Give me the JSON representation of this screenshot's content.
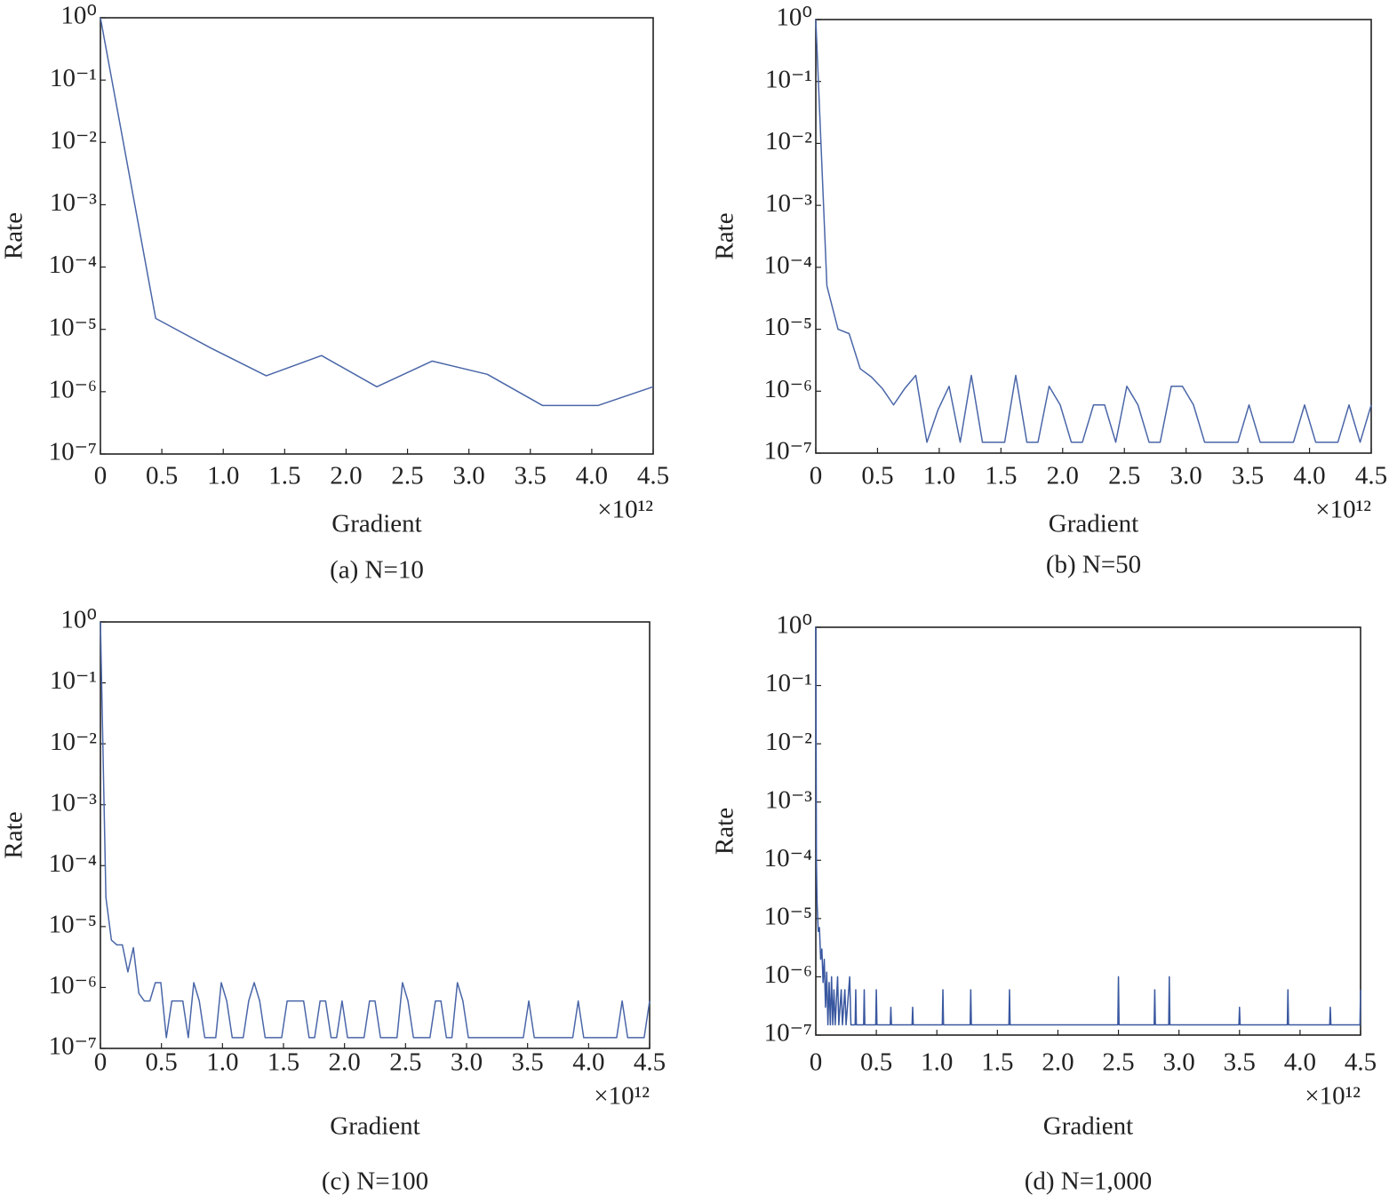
{
  "chart_data": [
    {
      "type": "line",
      "title": "(a) N=10",
      "xlabel": "Gradient",
      "ylabel": "Rate",
      "x_offset_label": "×10¹²",
      "yscale": "log",
      "color": "#4a66a8",
      "xlim": [
        0,
        4.5
      ],
      "ylim": [
        1e-07,
        1
      ],
      "xticks": [
        0,
        0.5,
        {
          "value": 1,
          "label": "1.0"
        },
        1.5,
        {
          "value": 2,
          "label": "2.0"
        },
        2.5,
        {
          "value": 3,
          "label": "3.0"
        },
        3.5,
        {
          "value": 4,
          "label": "4.0"
        },
        4.5
      ],
      "yticks": [
        {
          "value": 1,
          "label": "10⁰"
        },
        {
          "value": 0.1,
          "label": "10⁻¹"
        },
        {
          "value": 0.01,
          "label": "10⁻²"
        },
        {
          "value": 0.001,
          "label": "10⁻³"
        },
        {
          "value": 0.0001,
          "label": "10⁻⁴"
        },
        {
          "value": 1e-05,
          "label": "10⁻⁵"
        },
        {
          "value": 1e-06,
          "label": "10⁻⁶"
        },
        {
          "value": 1e-07,
          "label": "10⁻⁷"
        }
      ],
      "x": [
        0,
        0.45,
        0.9,
        1.35,
        1.8,
        2.25,
        2.7,
        3.15,
        3.6,
        4.05,
        4.5
      ],
      "values": [
        1,
        1.5e-05,
        5e-06,
        1.8e-06,
        3.8e-06,
        1.2e-06,
        3.1e-06,
        1.9e-06,
        6e-07,
        6e-07,
        1.2e-06
      ]
    },
    {
      "type": "line",
      "title": "(b) N=50",
      "xlabel": "Gradient",
      "ylabel": "Rate",
      "x_offset_label": "×10¹²",
      "yscale": "log",
      "color": "#4a66a8",
      "xlim": [
        0,
        4.5
      ],
      "ylim": [
        1e-07,
        1
      ],
      "xticks": [
        0,
        0.5,
        {
          "value": 1,
          "label": "1.0"
        },
        1.5,
        {
          "value": 2,
          "label": "2.0"
        },
        2.5,
        {
          "value": 3,
          "label": "3.0"
        },
        3.5,
        {
          "value": 4,
          "label": "4.0"
        },
        4.5
      ],
      "yticks": [
        {
          "value": 1,
          "label": "10⁰"
        },
        {
          "value": 0.1,
          "label": "10⁻¹"
        },
        {
          "value": 0.01,
          "label": "10⁻²"
        },
        {
          "value": 0.001,
          "label": "10⁻³"
        },
        {
          "value": 0.0001,
          "label": "10⁻⁴"
        },
        {
          "value": 1e-05,
          "label": "10⁻⁵"
        },
        {
          "value": 1e-06,
          "label": "10⁻⁶"
        },
        {
          "value": 1e-07,
          "label": "10⁻⁷"
        }
      ],
      "x": [
        0,
        0.09,
        0.18,
        0.27,
        0.36,
        0.45,
        0.54,
        0.63,
        0.72,
        0.81,
        0.9,
        0.99,
        1.08,
        1.17,
        1.26,
        1.35,
        1.44,
        1.53,
        1.62,
        1.71,
        1.8,
        1.89,
        1.98,
        2.07,
        2.16,
        2.25,
        2.34,
        2.43,
        2.52,
        2.61,
        2.7,
        2.79,
        2.88,
        2.97,
        3.06,
        3.15,
        3.24,
        3.33,
        3.42,
        3.51,
        3.6,
        3.69,
        3.78,
        3.87,
        3.96,
        4.05,
        4.14,
        4.23,
        4.32,
        4.41,
        4.5
      ],
      "values": [
        1,
        5e-05,
        1e-05,
        8.5e-06,
        2.3e-06,
        1.7e-06,
        1.1e-06,
        6e-07,
        1.1e-06,
        1.8e-06,
        1.5e-07,
        5e-07,
        1.2e-06,
        1.5e-07,
        1.8e-06,
        1.5e-07,
        1.5e-07,
        1.5e-07,
        1.8e-06,
        1.5e-07,
        1.5e-07,
        1.2e-06,
        6e-07,
        1.5e-07,
        1.5e-07,
        6e-07,
        6e-07,
        1.5e-07,
        1.2e-06,
        6e-07,
        1.5e-07,
        1.5e-07,
        1.2e-06,
        1.2e-06,
        6e-07,
        1.5e-07,
        1.5e-07,
        1.5e-07,
        1.5e-07,
        6e-07,
        1.5e-07,
        1.5e-07,
        1.5e-07,
        1.5e-07,
        6e-07,
        1.5e-07,
        1.5e-07,
        1.5e-07,
        6e-07,
        1.5e-07,
        6e-07
      ]
    },
    {
      "type": "line",
      "title": "(c) N=100",
      "xlabel": "Gradient",
      "ylabel": "Rate",
      "x_offset_label": "×10¹²",
      "yscale": "log",
      "color": "#4a66a8",
      "xlim": [
        0,
        4.5
      ],
      "ylim": [
        1e-07,
        1
      ],
      "xticks": [
        0,
        0.5,
        {
          "value": 1,
          "label": "1.0"
        },
        1.5,
        {
          "value": 2,
          "label": "2.0"
        },
        2.5,
        {
          "value": 3,
          "label": "3.0"
        },
        3.5,
        {
          "value": 4,
          "label": "4.0"
        },
        4.5
      ],
      "yticks": [
        {
          "value": 1,
          "label": "10⁰"
        },
        {
          "value": 0.1,
          "label": "10⁻¹"
        },
        {
          "value": 0.01,
          "label": "10⁻²"
        },
        {
          "value": 0.001,
          "label": "10⁻³"
        },
        {
          "value": 0.0001,
          "label": "10⁻⁴"
        },
        {
          "value": 1e-05,
          "label": "10⁻⁵"
        },
        {
          "value": 1e-06,
          "label": "10⁻⁶"
        },
        {
          "value": 1e-07,
          "label": "10⁻⁷"
        }
      ],
      "x": [
        0,
        0.045,
        0.09,
        0.135,
        0.18,
        0.225,
        0.27,
        0.315,
        0.36,
        0.405,
        0.45,
        0.495,
        0.54,
        0.585,
        0.63,
        0.675,
        0.72,
        0.765,
        0.81,
        0.855,
        0.9,
        0.945,
        0.99,
        1.035,
        1.08,
        1.125,
        1.17,
        1.215,
        1.26,
        1.305,
        1.35,
        1.395,
        1.44,
        1.485,
        1.53,
        1.575,
        1.62,
        1.665,
        1.71,
        1.755,
        1.8,
        1.845,
        1.89,
        1.935,
        1.98,
        2.025,
        2.07,
        2.115,
        2.16,
        2.205,
        2.25,
        2.295,
        2.34,
        2.385,
        2.43,
        2.475,
        2.52,
        2.565,
        2.61,
        2.655,
        2.7,
        2.745,
        2.79,
        2.835,
        2.88,
        2.925,
        2.97,
        3.015,
        3.06,
        3.105,
        3.15,
        3.195,
        3.24,
        3.285,
        3.33,
        3.375,
        3.42,
        3.465,
        3.51,
        3.555,
        3.6,
        3.645,
        3.69,
        3.735,
        3.78,
        3.825,
        3.87,
        3.915,
        3.96,
        4.005,
        4.05,
        4.095,
        4.14,
        4.185,
        4.23,
        4.275,
        4.32,
        4.365,
        4.41,
        4.455,
        4.5
      ],
      "values": [
        1,
        3e-05,
        6e-06,
        5e-06,
        5e-06,
        1.8e-06,
        4.5e-06,
        8e-07,
        6e-07,
        6e-07,
        1.2e-06,
        1.2e-06,
        1.5e-07,
        6e-07,
        6e-07,
        6e-07,
        1.5e-07,
        1.2e-06,
        6e-07,
        1.5e-07,
        1.5e-07,
        1.5e-07,
        1.2e-06,
        6e-07,
        1.5e-07,
        1.5e-07,
        1.5e-07,
        6e-07,
        1.2e-06,
        6e-07,
        1.5e-07,
        1.5e-07,
        1.5e-07,
        1.5e-07,
        6e-07,
        6e-07,
        6e-07,
        6e-07,
        1.5e-07,
        1.5e-07,
        6e-07,
        6e-07,
        1.5e-07,
        1.5e-07,
        6e-07,
        1.5e-07,
        1.5e-07,
        1.5e-07,
        1.5e-07,
        6e-07,
        6e-07,
        1.5e-07,
        1.5e-07,
        1.5e-07,
        1.5e-07,
        1.2e-06,
        6e-07,
        1.5e-07,
        1.5e-07,
        1.5e-07,
        1.5e-07,
        6e-07,
        6e-07,
        1.5e-07,
        1.5e-07,
        1.2e-06,
        6e-07,
        1.5e-07,
        1.5e-07,
        1.5e-07,
        1.5e-07,
        1.5e-07,
        1.5e-07,
        1.5e-07,
        1.5e-07,
        1.5e-07,
        1.5e-07,
        1.5e-07,
        6e-07,
        1.5e-07,
        1.5e-07,
        1.5e-07,
        1.5e-07,
        1.5e-07,
        1.5e-07,
        1.5e-07,
        1.5e-07,
        6e-07,
        1.5e-07,
        1.5e-07,
        1.5e-07,
        1.5e-07,
        1.5e-07,
        1.5e-07,
        1.5e-07,
        6e-07,
        1.5e-07,
        1.5e-07,
        1.5e-07,
        1.5e-07,
        6e-07
      ]
    },
    {
      "type": "line",
      "title": "(d) N=1,000",
      "xlabel": "Gradient",
      "ylabel": "Rate",
      "x_offset_label": "×10¹²",
      "yscale": "log",
      "color": "#3a58a0",
      "xlim": [
        0,
        4.5
      ],
      "ylim": [
        1e-07,
        1
      ],
      "xticks": [
        0,
        0.5,
        {
          "value": 1,
          "label": "1.0"
        },
        1.5,
        {
          "value": 2,
          "label": "2.0"
        },
        2.5,
        {
          "value": 3,
          "label": "3.0"
        },
        3.5,
        {
          "value": 4,
          "label": "4.0"
        },
        4.5
      ],
      "yticks": [
        {
          "value": 1,
          "label": "10⁰"
        },
        {
          "value": 0.1,
          "label": "10⁻¹"
        },
        {
          "value": 0.01,
          "label": "10⁻²"
        },
        {
          "value": 0.001,
          "label": "10⁻³"
        },
        {
          "value": 0.0001,
          "label": "10⁻⁴"
        },
        {
          "value": 1e-05,
          "label": "10⁻⁵"
        },
        {
          "value": 1e-06,
          "label": "10⁻⁶"
        },
        {
          "value": 1e-07,
          "label": "10⁻⁷"
        }
      ],
      "x": [
        0,
        0.005,
        0.01,
        0.02,
        0.03,
        0.04,
        0.05,
        0.06,
        0.07,
        0.08,
        0.09,
        0.1,
        0.11,
        0.12,
        0.13,
        0.14,
        0.15,
        0.16,
        0.18,
        0.19,
        0.21,
        0.22,
        0.24,
        0.25,
        0.28,
        0.29,
        0.325,
        0.33,
        0.335,
        0.395,
        0.4,
        0.405,
        0.495,
        0.5,
        0.505,
        0.615,
        0.62,
        0.625,
        0.795,
        0.8,
        0.805,
        1.045,
        1.05,
        1.055,
        1.275,
        1.28,
        1.285,
        1.595,
        1.6,
        1.605,
        2.495,
        2.5,
        2.505,
        2.795,
        2.8,
        2.805,
        2.915,
        2.92,
        2.925,
        3.495,
        3.5,
        3.505,
        3.895,
        3.9,
        3.905,
        4.245,
        4.25,
        4.255,
        4.495,
        4.5
      ],
      "values": [
        1,
        0.0001,
        2e-05,
        6e-06,
        7e-06,
        2e-06,
        3e-06,
        8e-07,
        2e-06,
        3e-07,
        1.2e-06,
        1.5e-07,
        8e-07,
        1.5e-07,
        1e-06,
        1.5e-07,
        6e-07,
        1.5e-07,
        1e-06,
        1.5e-07,
        6e-07,
        1.5e-07,
        6e-07,
        1.5e-07,
        1e-06,
        1.5e-07,
        1.5e-07,
        6e-07,
        1.5e-07,
        1.5e-07,
        6e-07,
        1.5e-07,
        1.5e-07,
        6e-07,
        1.5e-07,
        1.5e-07,
        3e-07,
        1.5e-07,
        1.5e-07,
        3e-07,
        1.5e-07,
        1.5e-07,
        6e-07,
        1.5e-07,
        1.5e-07,
        6e-07,
        1.5e-07,
        1.5e-07,
        6e-07,
        1.5e-07,
        1.5e-07,
        1e-06,
        1.5e-07,
        1.5e-07,
        6e-07,
        1.5e-07,
        1.5e-07,
        1e-06,
        1.5e-07,
        1.5e-07,
        3e-07,
        1.5e-07,
        1.5e-07,
        6e-07,
        1.5e-07,
        1.5e-07,
        3e-07,
        1.5e-07,
        1.5e-07,
        6e-07
      ]
    }
  ]
}
